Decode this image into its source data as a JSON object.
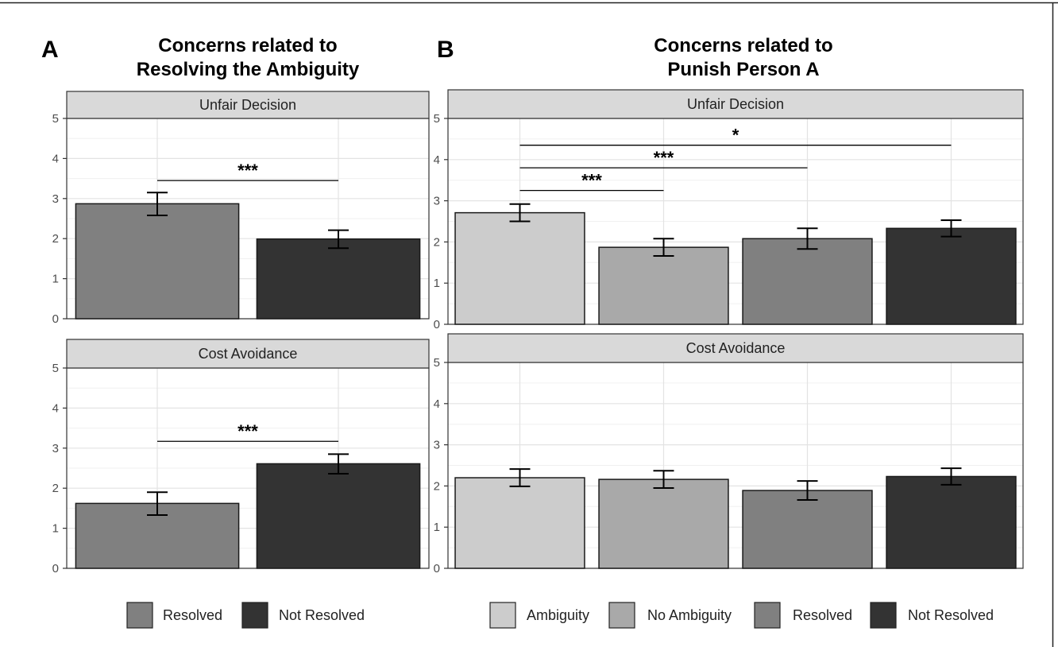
{
  "panels": [
    {
      "letter": "A",
      "title_lines": [
        "Concerns related to",
        "Resolving the Ambiguity"
      ]
    },
    {
      "letter": "B",
      "title_lines": [
        "Concerns related to",
        "Punish Person A"
      ]
    }
  ],
  "chart_data": [
    {
      "type": "bar",
      "panel": "A",
      "facet": "Unfair Decision",
      "categories": [
        "Resolved",
        "Not Resolved"
      ],
      "values": [
        2.87,
        1.99
      ],
      "error_low": [
        2.58,
        1.76
      ],
      "error_high": [
        3.15,
        2.21
      ],
      "colors": [
        "#808080",
        "#333333"
      ],
      "ylim": [
        0,
        5
      ],
      "yticks": [
        "0",
        "1",
        "2",
        "3",
        "4",
        "5"
      ],
      "significance": [
        {
          "from": 0,
          "to": 1,
          "label": "***",
          "y": 3.45
        }
      ],
      "grid": true
    },
    {
      "type": "bar",
      "panel": "A",
      "facet": "Cost Avoidance",
      "categories": [
        "Resolved",
        "Not Resolved"
      ],
      "values": [
        1.62,
        2.61
      ],
      "error_low": [
        1.33,
        2.36
      ],
      "error_high": [
        1.9,
        2.85
      ],
      "colors": [
        "#808080",
        "#333333"
      ],
      "ylim": [
        0,
        5
      ],
      "yticks": [
        "0",
        "1",
        "2",
        "3",
        "4",
        "5"
      ],
      "significance": [
        {
          "from": 0,
          "to": 1,
          "label": "***",
          "y": 3.17
        }
      ],
      "grid": true
    },
    {
      "type": "bar",
      "panel": "B",
      "facet": "Unfair Decision",
      "categories": [
        "Ambiguity",
        "No Ambiguity",
        "Resolved",
        "Not Resolved"
      ],
      "values": [
        2.71,
        1.87,
        2.08,
        2.33
      ],
      "error_low": [
        2.5,
        1.66,
        1.83,
        2.13
      ],
      "error_high": [
        2.92,
        2.08,
        2.33,
        2.53
      ],
      "colors": [
        "#cccccc",
        "#a9a9a9",
        "#808080",
        "#333333"
      ],
      "ylim": [
        0,
        5
      ],
      "yticks": [
        "0",
        "1",
        "2",
        "3",
        "4",
        "5"
      ],
      "significance": [
        {
          "from": 0,
          "to": 1,
          "label": "***",
          "y": 3.25
        },
        {
          "from": 0,
          "to": 2,
          "label": "***",
          "y": 3.8
        },
        {
          "from": 0,
          "to": 3,
          "label": "*",
          "y": 4.35
        }
      ],
      "grid": true
    },
    {
      "type": "bar",
      "panel": "B",
      "facet": "Cost Avoidance",
      "categories": [
        "Ambiguity",
        "No Ambiguity",
        "Resolved",
        "Not Resolved"
      ],
      "values": [
        2.2,
        2.16,
        1.89,
        2.23
      ],
      "error_low": [
        1.99,
        1.95,
        1.66,
        2.03
      ],
      "error_high": [
        2.41,
        2.37,
        2.12,
        2.43
      ],
      "colors": [
        "#cccccc",
        "#a9a9a9",
        "#808080",
        "#333333"
      ],
      "ylim": [
        0,
        5
      ],
      "yticks": [
        "0",
        "1",
        "2",
        "3",
        "4",
        "5"
      ],
      "significance": [],
      "grid": true
    }
  ],
  "legends": [
    {
      "panel": "A",
      "items": [
        {
          "label": "Resolved",
          "color": "#808080"
        },
        {
          "label": "Not Resolved",
          "color": "#333333"
        }
      ]
    },
    {
      "panel": "B",
      "items": [
        {
          "label": "Ambiguity",
          "color": "#cccccc"
        },
        {
          "label": "No Ambiguity",
          "color": "#a9a9a9"
        },
        {
          "label": "Resolved",
          "color": "#808080"
        },
        {
          "label": "Not Resolved",
          "color": "#333333"
        }
      ]
    }
  ]
}
